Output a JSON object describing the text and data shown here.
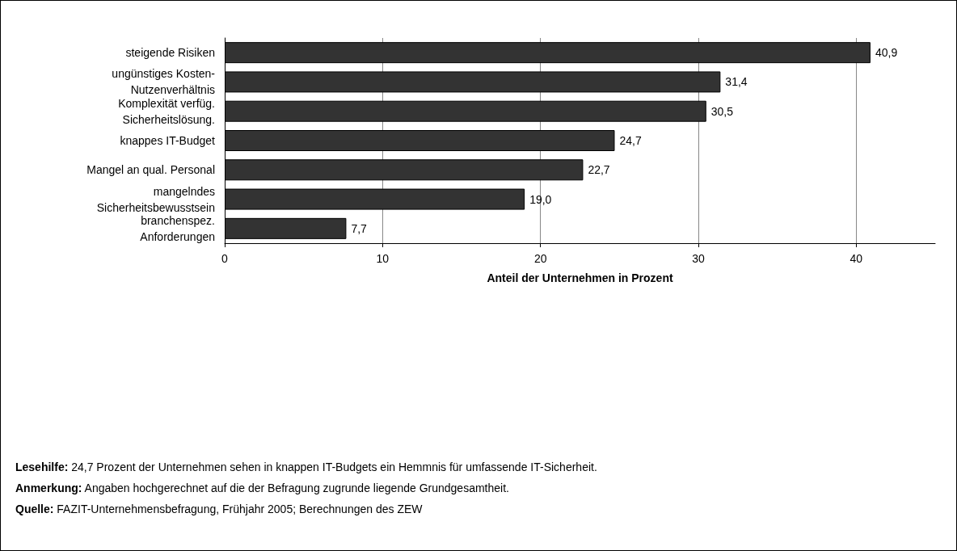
{
  "chart_data": {
    "type": "bar",
    "orientation": "horizontal",
    "categories": [
      "steigende Risiken",
      "ungünstiges Kosten-\nNutzenverhältnis",
      "Komplexität verfüg.\nSicherheitslösung.",
      "knappes IT-Budget",
      "Mangel an qual. Personal",
      "mangelndes\nSicherheitsbewusstsein",
      "branchenspez.\nAnforderungen"
    ],
    "values": [
      40.9,
      31.4,
      30.5,
      24.7,
      22.7,
      19.0,
      7.7
    ],
    "value_labels": [
      "40,9",
      "31,4",
      "30,5",
      "24,7",
      "22,7",
      "19,0",
      "7,7"
    ],
    "color": "#333333",
    "xlabel": "Anteil der Unternehmen in Prozent",
    "xlim": [
      0,
      45
    ],
    "xticks": [
      0,
      10,
      20,
      30,
      40
    ],
    "grid": "x",
    "annotations": [
      "Lesehilfe: 24,7 Prozent der Unternehmen sehen in knappen IT-Budgets ein Hemmnis für umfassende IT-Sicherheit.",
      "Anmerkung: Angaben hochgerechnet auf die der Befragung zugrunde liegende Grundgesamtheit.",
      "Quelle: FAZIT-Unternehmensbefragung, Frühjahr 2005; Berechnungen des ZEW"
    ]
  }
}
